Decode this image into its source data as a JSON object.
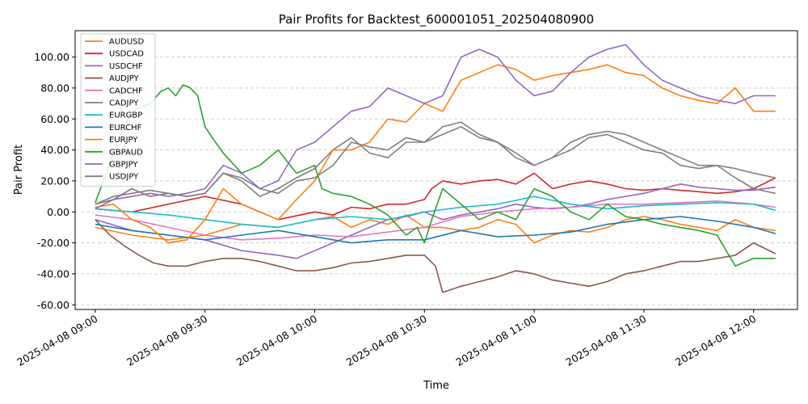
{
  "chart_data": {
    "type": "line",
    "title": "Pair Profits for Backtest_600001051_202504080900",
    "xlabel": "Time",
    "ylabel": "Pair Profit",
    "xlim_minutes": [
      -5.5,
      192
    ],
    "ylim": [
      -63,
      117
    ],
    "yticks": [
      -60,
      -40,
      -20,
      0,
      20,
      40,
      60,
      80,
      100
    ],
    "ytick_labels": [
      "-60.00",
      "-40.00",
      "-20.00",
      "0.00",
      "20.00",
      "40.00",
      "60.00",
      "80.00",
      "100.00"
    ],
    "xticks_minutes": [
      0,
      30,
      60,
      90,
      120,
      150,
      180
    ],
    "xtick_labels": [
      "2025-04-08 09:00",
      "2025-04-08 09:30",
      "2025-04-08 10:00",
      "2025-04-08 10:30",
      "2025-04-08 11:00",
      "2025-04-08 11:30",
      "2025-04-08 12:00"
    ],
    "grid": "y-dashed",
    "legend_position": "top-left",
    "series": [
      {
        "name": "AUDUSD",
        "color": "#ff7f0e",
        "t": [
          0,
          10,
          20,
          30,
          40,
          50,
          60,
          65,
          70,
          75,
          80,
          85,
          90,
          95,
          100,
          105,
          110,
          115,
          120,
          125,
          130,
          135,
          140,
          145,
          150,
          155,
          160,
          165,
          170,
          175,
          180,
          186
        ],
        "values": [
          -10,
          -15,
          -18,
          -15,
          -8,
          -10,
          -5,
          -3,
          -10,
          -5,
          -8,
          -2,
          -10,
          -10,
          -12,
          -10,
          -5,
          -8,
          -20,
          -15,
          -12,
          -13,
          -10,
          -5,
          -3,
          -5,
          -8,
          -10,
          -12,
          -5,
          -10,
          -12
        ]
      },
      {
        "name": "USDCAD",
        "color": "#d62728",
        "t": [
          0,
          10,
          20,
          30,
          40,
          50,
          60,
          65,
          70,
          75,
          80,
          85,
          90,
          92,
          95,
          100,
          105,
          110,
          115,
          120,
          125,
          130,
          135,
          140,
          145,
          150,
          155,
          160,
          165,
          170,
          175,
          180,
          186
        ],
        "values": [
          2,
          0,
          5,
          10,
          5,
          -5,
          0,
          -2,
          3,
          2,
          5,
          5,
          8,
          15,
          20,
          18,
          20,
          21,
          18,
          25,
          15,
          18,
          20,
          18,
          15,
          14,
          15,
          14,
          13,
          12,
          13,
          15,
          22
        ]
      },
      {
        "name": "USDCHF",
        "color": "#9467bd",
        "t": [
          0,
          10,
          20,
          30,
          40,
          50,
          55,
          60,
          65,
          70,
          75,
          80,
          85,
          90,
          95,
          100,
          105,
          110,
          115,
          120,
          125,
          130,
          135,
          140,
          145,
          150,
          155,
          160,
          165,
          170,
          175,
          180,
          186
        ],
        "values": [
          -5,
          -12,
          -15,
          -18,
          -25,
          -28,
          -30,
          -25,
          -20,
          -15,
          -10,
          -5,
          -3,
          0,
          -5,
          -2,
          0,
          2,
          5,
          3,
          2,
          3,
          5,
          8,
          10,
          12,
          15,
          18,
          16,
          15,
          14,
          14,
          16
        ]
      },
      {
        "name": "AUDJPY",
        "color": "#8c564b",
        "t": [
          0,
          4,
          8,
          12,
          16,
          20,
          25,
          30,
          35,
          40,
          45,
          50,
          55,
          60,
          65,
          70,
          75,
          80,
          85,
          90,
          93,
          95,
          100,
          105,
          110,
          115,
          120,
          125,
          130,
          135,
          140,
          145,
          150,
          155,
          160,
          165,
          170,
          175,
          180,
          186
        ],
        "values": [
          -5,
          -15,
          -22,
          -28,
          -33,
          -35,
          -35,
          -32,
          -30,
          -30,
          -32,
          -35,
          -38,
          -38,
          -36,
          -33,
          -32,
          -30,
          -28,
          -28,
          -35,
          -52,
          -48,
          -45,
          -42,
          -38,
          -40,
          -44,
          -46,
          -48,
          -45,
          -40,
          -38,
          -35,
          -32,
          -32,
          -30,
          -28,
          -20,
          -27
        ]
      },
      {
        "name": "CADCHF",
        "color": "#e377c2",
        "t": [
          0,
          10,
          20,
          30,
          40,
          50,
          60,
          70,
          80,
          90,
          100,
          110,
          120,
          130,
          140,
          150,
          160,
          170,
          180,
          186
        ],
        "values": [
          -2,
          -5,
          -10,
          -15,
          -18,
          -17,
          -15,
          -16,
          -13,
          -10,
          -3,
          0,
          2,
          3,
          5,
          5,
          6,
          7,
          5,
          3
        ]
      },
      {
        "name": "CADJPY",
        "color": "#7f7f7f",
        "t": [
          0,
          5,
          10,
          15,
          20,
          25,
          30,
          35,
          40,
          45,
          50,
          55,
          60,
          65,
          70,
          75,
          80,
          85,
          90,
          95,
          100,
          105,
          110,
          115,
          120,
          125,
          130,
          135,
          140,
          145,
          150,
          155,
          160,
          165,
          170,
          175,
          180,
          186
        ],
        "values": [
          5,
          10,
          12,
          14,
          12,
          10,
          12,
          25,
          20,
          10,
          15,
          22,
          28,
          40,
          48,
          38,
          35,
          45,
          45,
          55,
          58,
          50,
          45,
          35,
          30,
          35,
          45,
          50,
          52,
          50,
          45,
          40,
          35,
          30,
          30,
          28,
          25,
          22
        ]
      },
      {
        "name": "EURGBP",
        "color": "#17becf",
        "t": [
          0,
          10,
          20,
          30,
          40,
          50,
          60,
          70,
          80,
          90,
          100,
          110,
          120,
          130,
          140,
          150,
          160,
          170,
          180,
          186
        ],
        "values": [
          2,
          0,
          -2,
          -5,
          -8,
          -10,
          -5,
          -3,
          -5,
          0,
          3,
          5,
          10,
          5,
          2,
          4,
          5,
          6,
          5,
          1
        ]
      },
      {
        "name": "EURCHF",
        "color": "#1f77b4",
        "t": [
          0,
          10,
          20,
          30,
          40,
          50,
          60,
          70,
          80,
          90,
          100,
          110,
          120,
          130,
          140,
          150,
          160,
          170,
          180,
          186
        ],
        "values": [
          -8,
          -12,
          -15,
          -18,
          -15,
          -12,
          -16,
          -20,
          -18,
          -18,
          -12,
          -16,
          -15,
          -13,
          -8,
          -5,
          -3,
          -6,
          -10,
          -14
        ]
      },
      {
        "name": "EURJPY",
        "color": "#ff7f0e",
        "t": [
          0,
          5,
          10,
          15,
          20,
          25,
          30,
          35,
          40,
          45,
          50,
          55,
          60,
          65,
          70,
          75,
          80,
          85,
          90,
          95,
          100,
          105,
          110,
          115,
          120,
          125,
          130,
          135,
          140,
          145,
          150,
          155,
          160,
          165,
          170,
          175,
          180,
          186
        ],
        "values": [
          3,
          5,
          -5,
          -10,
          -20,
          -18,
          -5,
          15,
          5,
          0,
          -5,
          8,
          20,
          40,
          40,
          45,
          60,
          58,
          70,
          65,
          85,
          90,
          95,
          92,
          85,
          88,
          90,
          92,
          95,
          90,
          88,
          80,
          75,
          72,
          70,
          80,
          65,
          65
        ]
      },
      {
        "name": "GBPAUD",
        "color": "#2ca02c",
        "t": [
          0,
          3,
          6,
          10,
          15,
          18,
          20,
          22,
          24,
          26,
          28,
          30,
          32,
          35,
          40,
          45,
          50,
          55,
          60,
          62,
          65,
          70,
          75,
          80,
          85,
          88,
          90,
          92,
          95,
          100,
          105,
          110,
          115,
          120,
          125,
          130,
          135,
          140,
          145,
          150,
          155,
          160,
          165,
          170,
          175,
          180,
          186
        ],
        "values": [
          6,
          25,
          45,
          65,
          70,
          78,
          80,
          75,
          82,
          80,
          75,
          55,
          48,
          38,
          25,
          30,
          40,
          25,
          30,
          15,
          12,
          10,
          5,
          -2,
          -15,
          -10,
          -20,
          -5,
          15,
          5,
          -5,
          0,
          -5,
          15,
          10,
          0,
          -5,
          5,
          -3,
          -5,
          -8,
          -10,
          -12,
          -15,
          -35,
          -30,
          -30
        ]
      },
      {
        "name": "GBPJPY",
        "color": "#9467bd",
        "t": [
          0,
          5,
          10,
          15,
          20,
          25,
          30,
          35,
          40,
          45,
          50,
          55,
          60,
          65,
          70,
          75,
          80,
          85,
          90,
          95,
          100,
          105,
          110,
          115,
          120,
          125,
          130,
          135,
          140,
          145,
          150,
          155,
          160,
          165,
          170,
          175,
          180,
          186
        ],
        "values": [
          2,
          8,
          10,
          12,
          10,
          12,
          15,
          30,
          25,
          15,
          20,
          40,
          45,
          55,
          65,
          68,
          80,
          75,
          70,
          75,
          100,
          105,
          100,
          85,
          75,
          78,
          90,
          100,
          105,
          108,
          95,
          85,
          80,
          75,
          72,
          70,
          75,
          75
        ]
      },
      {
        "name": "USDJPY",
        "color": "#7f7f7f",
        "t": [
          0,
          5,
          10,
          15,
          20,
          25,
          30,
          35,
          40,
          45,
          50,
          55,
          60,
          65,
          70,
          75,
          80,
          85,
          90,
          95,
          100,
          105,
          110,
          115,
          120,
          125,
          130,
          135,
          140,
          145,
          150,
          155,
          160,
          165,
          170,
          175,
          180,
          186
        ],
        "values": [
          5,
          8,
          15,
          10,
          12,
          10,
          12,
          25,
          22,
          15,
          12,
          20,
          22,
          30,
          45,
          42,
          40,
          48,
          45,
          50,
          55,
          48,
          45,
          38,
          30,
          35,
          40,
          48,
          50,
          45,
          40,
          38,
          30,
          28,
          30,
          22,
          15,
          12
        ]
      }
    ]
  }
}
